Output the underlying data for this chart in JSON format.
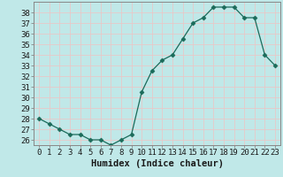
{
  "x": [
    0,
    1,
    2,
    3,
    4,
    5,
    6,
    7,
    8,
    9,
    10,
    11,
    12,
    13,
    14,
    15,
    16,
    17,
    18,
    19,
    20,
    21,
    22,
    23
  ],
  "y": [
    28,
    27.5,
    27,
    26.5,
    26.5,
    26,
    26,
    25.5,
    26,
    26.5,
    30.5,
    32.5,
    33.5,
    34,
    35.5,
    37,
    37.5,
    38.5,
    38.5,
    38.5,
    37.5,
    37.5,
    34,
    33
  ],
  "line_color": "#1a6b5a",
  "marker": "D",
  "marker_size": 2.5,
  "bg_color": "#c0e8e8",
  "grid_color": "#d8d8d8",
  "xlabel": "Humidex (Indice chaleur)",
  "ylim": [
    25.5,
    39.0
  ],
  "xlim": [
    -0.5,
    23.5
  ],
  "yticks": [
    26,
    27,
    28,
    29,
    30,
    31,
    32,
    33,
    34,
    35,
    36,
    37,
    38
  ],
  "xticks": [
    0,
    1,
    2,
    3,
    4,
    5,
    6,
    7,
    8,
    9,
    10,
    11,
    12,
    13,
    14,
    15,
    16,
    17,
    18,
    19,
    20,
    21,
    22,
    23
  ],
  "tick_fontsize": 6.5,
  "xlabel_fontsize": 7.5,
  "tick_color": "#1a1a1a",
  "axis_color": "#888888",
  "spine_color": "#888888"
}
